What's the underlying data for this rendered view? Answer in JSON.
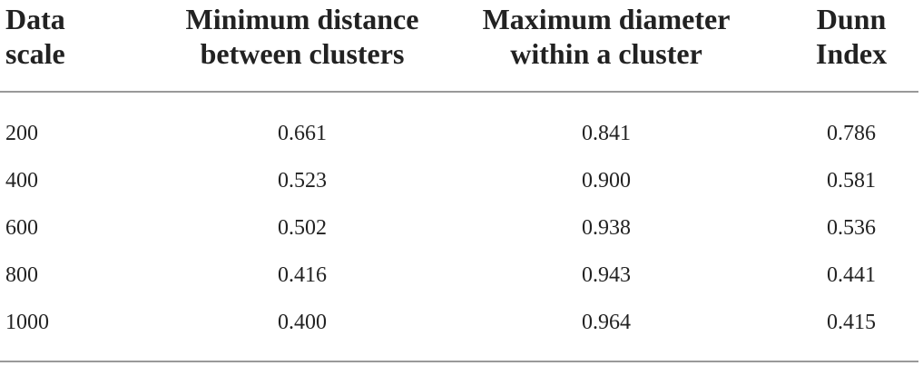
{
  "table": {
    "header": [
      [
        "Data",
        "scale"
      ],
      [
        "Minimum distance",
        "between clusters"
      ],
      [
        "Maximum diameter",
        "within a cluster"
      ],
      [
        "Dunn",
        "Index"
      ]
    ],
    "rows": [
      [
        "200",
        "0.661",
        "0.841",
        "0.786"
      ],
      [
        "400",
        "0.523",
        "0.900",
        "0.581"
      ],
      [
        "600",
        "0.502",
        "0.938",
        "0.536"
      ],
      [
        "800",
        "0.416",
        "0.943",
        "0.441"
      ],
      [
        "1000",
        "0.400",
        "0.964",
        "0.415"
      ]
    ]
  }
}
